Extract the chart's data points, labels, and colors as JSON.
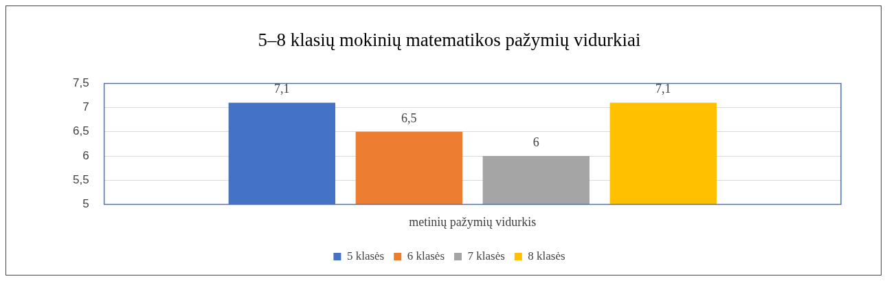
{
  "chart_data": {
    "type": "bar",
    "title": "5–8 klasių mokinių matematikos pažymių vidurkiai",
    "categories": [
      "metinių pažymių vidurkis"
    ],
    "series": [
      {
        "name": "5 klasės",
        "color": "#4472c4",
        "values": [
          7.1
        ],
        "value_labels": [
          "7,1"
        ]
      },
      {
        "name": "6 klasės",
        "color": "#ed7d31",
        "values": [
          6.5
        ],
        "value_labels": [
          "6,5"
        ]
      },
      {
        "name": "7 klasės",
        "color": "#a5a5a5",
        "values": [
          6
        ],
        "value_labels": [
          "6"
        ]
      },
      {
        "name": "8 klasės",
        "color": "#ffc000",
        "values": [
          7.1
        ],
        "value_labels": [
          "7,1"
        ]
      }
    ],
    "ylim": [
      5,
      7.5
    ],
    "yticks": [
      5,
      {
        "value": 5.5,
        "label": "5,5"
      },
      6,
      {
        "value": 6.5,
        "label": "6,5"
      },
      7,
      {
        "value": 7.5,
        "label": "7,5"
      }
    ],
    "grid": "y",
    "legend": "bottom"
  }
}
